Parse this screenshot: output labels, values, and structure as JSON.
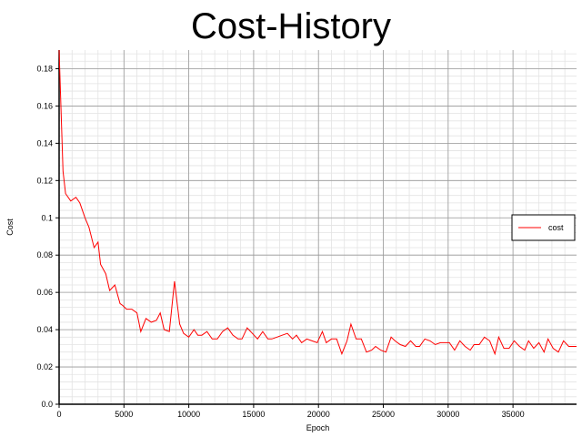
{
  "chart_data": {
    "type": "line",
    "title": "Cost-History",
    "xlabel": "Epoch",
    "ylabel": "Cost",
    "xlim": [
      0,
      39900
    ],
    "ylim": [
      0,
      0.19
    ],
    "x_ticks": [
      0,
      5000,
      10000,
      15000,
      20000,
      25000,
      30000,
      35000
    ],
    "y_ticks": [
      0,
      0.02,
      0.04,
      0.06,
      0.08,
      0.1,
      0.12,
      0.14,
      0.16,
      0.18
    ],
    "x_tick_labels": [
      "0",
      "5000",
      "10000",
      "15000",
      "20000",
      "25000",
      "30000",
      "35000"
    ],
    "y_tick_labels": [
      "0.0",
      "0.02",
      "0.04",
      "0.06",
      "0.08",
      "0.1",
      "0.12",
      "0.14",
      "0.16",
      "0.18"
    ],
    "grid": true,
    "legend_position": "right",
    "series": [
      {
        "name": "cost",
        "color": "#ff0000",
        "x": [
          0,
          300,
          500,
          900,
          1300,
          1600,
          2000,
          2300,
          2700,
          3000,
          3200,
          3600,
          3900,
          4300,
          4700,
          4900,
          5200,
          5600,
          6000,
          6300,
          6700,
          7100,
          7500,
          7800,
          8100,
          8500,
          8900,
          9300,
          9600,
          10000,
          10400,
          10700,
          11000,
          11400,
          11800,
          12200,
          12600,
          13000,
          13400,
          13800,
          14100,
          14500,
          14900,
          15300,
          15700,
          16100,
          16400,
          16800,
          17200,
          17600,
          18000,
          18300,
          18700,
          19100,
          19500,
          19900,
          20300,
          20600,
          21000,
          21400,
          21800,
          22200,
          22500,
          22900,
          23300,
          23700,
          24100,
          24400,
          24800,
          25200,
          25600,
          25900,
          26300,
          26700,
          27100,
          27500,
          27800,
          28200,
          28600,
          29000,
          29400,
          29700,
          30100,
          30500,
          30900,
          31300,
          31700,
          32000,
          32400,
          32800,
          33200,
          33600,
          33900,
          34300,
          34700,
          35100,
          35500,
          35900,
          36200,
          36600,
          37000,
          37400,
          37700,
          38100,
          38500,
          38900,
          39300,
          39900
        ],
        "values": [
          0.19,
          0.125,
          0.113,
          0.109,
          0.111,
          0.108,
          0.1,
          0.095,
          0.084,
          0.087,
          0.075,
          0.07,
          0.061,
          0.064,
          0.054,
          0.053,
          0.051,
          0.051,
          0.049,
          0.039,
          0.046,
          0.044,
          0.045,
          0.049,
          0.04,
          0.039,
          0.066,
          0.043,
          0.038,
          0.036,
          0.04,
          0.037,
          0.037,
          0.039,
          0.035,
          0.035,
          0.039,
          0.041,
          0.037,
          0.035,
          0.035,
          0.041,
          0.038,
          0.035,
          0.039,
          0.035,
          0.035,
          0.036,
          0.037,
          0.038,
          0.035,
          0.037,
          0.033,
          0.035,
          0.034,
          0.033,
          0.039,
          0.033,
          0.035,
          0.035,
          0.027,
          0.034,
          0.043,
          0.035,
          0.035,
          0.028,
          0.029,
          0.031,
          0.029,
          0.028,
          0.036,
          0.034,
          0.032,
          0.031,
          0.034,
          0.031,
          0.031,
          0.035,
          0.034,
          0.032,
          0.033,
          0.033,
          0.033,
          0.029,
          0.034,
          0.031,
          0.029,
          0.032,
          0.032,
          0.036,
          0.034,
          0.027,
          0.036,
          0.03,
          0.03,
          0.034,
          0.031,
          0.029,
          0.034,
          0.03,
          0.033,
          0.028,
          0.035,
          0.03,
          0.028,
          0.034,
          0.031,
          0.031
        ]
      }
    ]
  }
}
